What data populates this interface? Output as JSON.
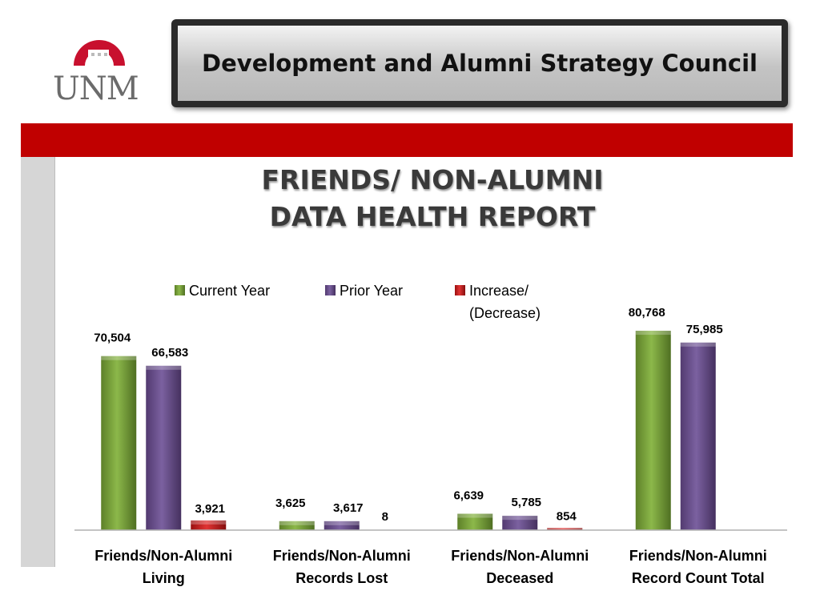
{
  "header": {
    "logo_text": "UNM",
    "title": "Development and Alumni Strategy Council"
  },
  "chart_data": {
    "type": "bar",
    "title_lines": [
      "FRIENDS/ NON-ALUMNI",
      "DATA HEALTH REPORT"
    ],
    "categories": [
      [
        "Friends/Non-Alumni",
        "Living"
      ],
      [
        "Friends/Non-Alumni",
        "Records Lost"
      ],
      [
        "Friends/Non-Alumni",
        "Deceased"
      ],
      [
        "Friends/Non-Alumni",
        "Record Count Total"
      ]
    ],
    "series": [
      {
        "name": "Current Year",
        "color": "#77a03a",
        "values": [
          70504,
          3625,
          6639,
          80768
        ],
        "labels": [
          "70,504",
          "3,625",
          "6,639",
          "80,768"
        ]
      },
      {
        "name": "Prior Year",
        "color": "#6a4f8a",
        "values": [
          66583,
          3617,
          5785,
          75985
        ],
        "labels": [
          "66,583",
          "3,617",
          "5,785",
          "75,985"
        ]
      },
      {
        "name": "Increase/ (Decrease)",
        "name_lines": [
          "Increase/",
          "(Decrease)"
        ],
        "color": "#c0201f",
        "values": [
          3921,
          8,
          854,
          null
        ],
        "labels": [
          "3,921",
          "8",
          "854",
          null
        ]
      }
    ],
    "ylim": [
      0,
      85000
    ],
    "grid": false,
    "legend": "top"
  }
}
